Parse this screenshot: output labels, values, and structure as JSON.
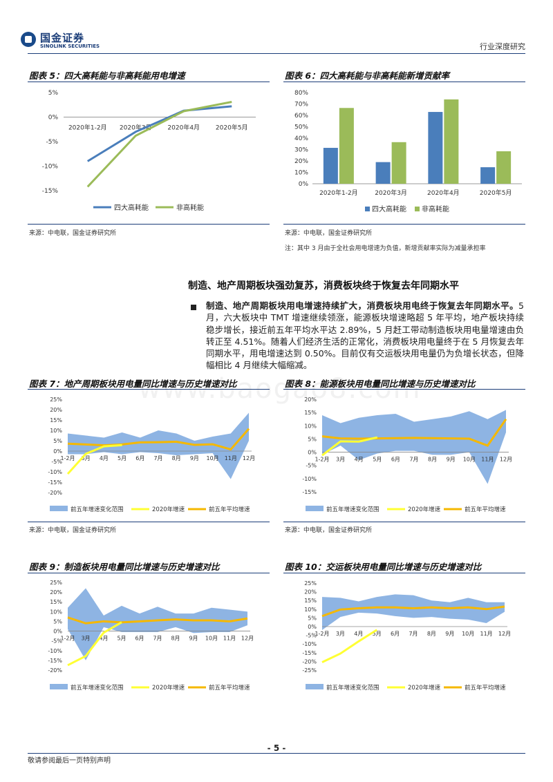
{
  "header": {
    "logo_cn": "国金证券",
    "logo_en": "SINOLINK SECURITIES",
    "section": "行业深度研究"
  },
  "figures": {
    "fig5": {
      "title": "图表 5：四大高耗能与非高耗能用电增速",
      "source": "来源：中电联，国金证券研究所"
    },
    "fig6": {
      "title": "图表 6：四大高耗能与非高耗能新增贡献率",
      "source": "来源：中电联，国金证券研究所",
      "note": "注：其中 3 月由于全社会用电增速为负值，新增贡献率实际为减量承担率"
    },
    "fig7": {
      "title": "图表 7：地产周期板块用电量同比增速与历史增速对比",
      "source": "来源：中电联，国金证券研究所"
    },
    "fig8": {
      "title": "图表 8：能源板块用电量同比增速与历史增速对比",
      "source": "来源：中电联，国金证券研究所"
    },
    "fig9": {
      "title": "图表 9：制造板块用电量同比增速与历史增速对比"
    },
    "fig10": {
      "title": "图表 10：交运板块用电量同比增速与历史增速对比"
    }
  },
  "section": {
    "title": "制造、地产周期板块强劲复苏，消费板块终于恢复去年同期水平",
    "bullet_bold": "制造、地产周期板块用电增速持续扩大，消费板块用电终于恢复去年同期水平。",
    "bullet_text": "5 月，六大板块中 TMT 增速继续领涨，能源板块增速略超 5 年平均，地产板块持续稳步增长，接近前五年平均水平达 2.89%，5 月赶工带动制造板块用电量增速由负转正至 4.51%。随着人们经济生活的正常化，消费板块用电量终于在 5 月恢复去年同期水平，用电增速达到 0.50%。目前仅有交运板块用电量仍为负增长状态，但降幅相比 4 月继续大幅缩减。"
  },
  "footer": {
    "page": "- 5 -",
    "note": "敬请参阅最后一页特别声明"
  },
  "watermark": "www.baogao8.com",
  "colors": {
    "blue": "#4a7ebb",
    "green": "#9bbb59",
    "band": "#8eb4e3",
    "yellow": "#ffff33",
    "gold": "#f5b800",
    "navy": "#1a3c78"
  },
  "chart_data": [
    {
      "id": "fig5",
      "type": "line",
      "categories": [
        "2020年1-2月",
        "2020年3月",
        "2020年4月",
        "2020年5月"
      ],
      "series": [
        {
          "name": "四大高耗能",
          "values": [
            -9.0,
            -3.0,
            1.3,
            2.2
          ],
          "color": "#4a7ebb"
        },
        {
          "name": "非高耗能",
          "values": [
            -14.2,
            -3.8,
            1.2,
            3.1
          ],
          "color": "#9bbb59"
        }
      ],
      "ylim": [
        -15,
        5
      ],
      "yticks": [
        5,
        0,
        -5,
        -10,
        -15
      ],
      "ytick_labels": [
        "5%",
        "0%",
        "-5%",
        "-10%",
        "-15%"
      ]
    },
    {
      "id": "fig6",
      "type": "bar",
      "categories": [
        "2020年1-2月",
        "2020年3月",
        "2020年4月",
        "2020年5月"
      ],
      "series": [
        {
          "name": "四大高耗能",
          "values": [
            31.5,
            19,
            63,
            14.5
          ],
          "color": "#4a7ebb"
        },
        {
          "name": "非高耗能",
          "values": [
            66.5,
            36.5,
            74,
            28.5
          ],
          "color": "#9bbb59"
        }
      ],
      "ylim": [
        0,
        80
      ],
      "yticks": [
        0,
        10,
        20,
        30,
        40,
        50,
        60,
        70,
        80
      ],
      "ytick_labels": [
        "0%",
        "10%",
        "20%",
        "30%",
        "40%",
        "50%",
        "60%",
        "70%",
        "80%"
      ]
    },
    {
      "id": "fig7",
      "type": "area",
      "categories": [
        "1-2月",
        "3月",
        "4月",
        "5月",
        "6月",
        "7月",
        "8月",
        "9月",
        "10月",
        "11月",
        "12月"
      ],
      "band_high": [
        8.5,
        7.5,
        6.5,
        9,
        6.5,
        10,
        8.5,
        5,
        7,
        8.5,
        18.5
      ],
      "band_low": [
        -1.5,
        -1.5,
        -0.5,
        -1.5,
        -0.5,
        -1,
        -2,
        -1.5,
        -1,
        -13.5,
        5
      ],
      "growth_2020": [
        -11,
        -1.3,
        2.3,
        2.89
      ],
      "avg_5yr": [
        3.6,
        3.2,
        2.8,
        3.2,
        4.2,
        4.3,
        4.5,
        3.0,
        3.3,
        0.8,
        10.8
      ],
      "ylim": [
        -20,
        25
      ],
      "yticks": [
        25,
        20,
        15,
        10,
        5,
        0,
        -5,
        -10,
        -15,
        -20
      ],
      "ytick_labels": [
        "25%",
        "20%",
        "15%",
        "10%",
        "5%",
        "0%",
        "-5%",
        "-10%",
        "-15%",
        "-20%"
      ],
      "legend": [
        "前五年增速变化范围",
        "2020年增速",
        "前五年平均增速"
      ]
    },
    {
      "id": "fig8",
      "type": "area",
      "categories": [
        "1-2月",
        "3月",
        "4月",
        "5月",
        "6月",
        "7月",
        "8月",
        "9月",
        "10月",
        "11月",
        "12月"
      ],
      "band_high": [
        14,
        11,
        13,
        14,
        14.5,
        11.5,
        12.5,
        13.5,
        15.5,
        12.5,
        16
      ],
      "band_low": [
        -1,
        2.5,
        -3,
        -0.5,
        0.5,
        0.5,
        -1,
        -1,
        0,
        -12,
        7.5
      ],
      "growth_2020": [
        -1.2,
        4.1,
        4.0,
        5.6
      ],
      "avg_5yr": [
        6,
        5.2,
        5.1,
        5.2,
        5.3,
        5.4,
        5.3,
        5.2,
        5.1,
        2.5,
        12.5
      ],
      "ylim": [
        -15,
        20
      ],
      "yticks": [
        20,
        15,
        10,
        5,
        0,
        -5,
        -10,
        -15
      ],
      "ytick_labels": [
        "20%",
        "15%",
        "10%",
        "5%",
        "0%",
        "-5%",
        "-10%",
        "-15%"
      ],
      "legend": [
        "前五年增速变化范围",
        "2020年增速",
        "前五年平均增速"
      ]
    },
    {
      "id": "fig9",
      "type": "area",
      "categories": [
        "1-2月",
        "3月",
        "4月",
        "5月",
        "6月",
        "7月",
        "8月",
        "9月",
        "10月",
        "11月",
        "12月"
      ],
      "band_high": [
        12,
        22,
        8,
        13,
        9,
        12.5,
        9,
        9,
        12,
        11,
        10
      ],
      "band_low": [
        1,
        -15,
        2,
        -0.5,
        -0.5,
        -0.5,
        2,
        -1,
        -0.5,
        -0.5,
        3
      ],
      "growth_2020": [
        -17.5,
        -12.8,
        -0.8,
        4.51
      ],
      "avg_5yr": [
        7,
        4,
        5,
        4.5,
        5,
        5.5,
        6,
        5.5,
        5.5,
        5,
        6.5
      ],
      "ylim": [
        -20,
        25
      ],
      "yticks": [
        25,
        20,
        15,
        10,
        5,
        0,
        -5,
        -10,
        -15,
        -20
      ],
      "ytick_labels": [
        "25%",
        "20%",
        "15%",
        "10%",
        "5%",
        "0%",
        "-5%",
        "-10%",
        "-15%",
        "-20%"
      ],
      "legend": [
        "前五年增速变化范围",
        "2020年增速",
        "前五年平均增速"
      ]
    },
    {
      "id": "fig10",
      "type": "area",
      "categories": [
        "1-2月",
        "3月",
        "4月",
        "5月",
        "6月",
        "7月",
        "8月",
        "9月",
        "10月",
        "11月",
        "12月"
      ],
      "band_high": [
        17,
        16.5,
        14.5,
        17,
        18.5,
        18,
        15,
        14,
        16.5,
        14,
        14
      ],
      "band_low": [
        -2,
        5.5,
        8,
        7.5,
        6,
        5,
        5.5,
        4.5,
        4,
        2,
        8.5
      ],
      "growth_2020": [
        -20.5,
        -15.5,
        -8.5,
        -1.9
      ],
      "avg_5yr": [
        6,
        9.8,
        10.5,
        11,
        11,
        10.5,
        11,
        10.5,
        11,
        10,
        11.5
      ],
      "ylim": [
        -25,
        25
      ],
      "yticks": [
        25,
        20,
        15,
        10,
        5,
        0,
        -5,
        -10,
        -15,
        -20,
        -25
      ],
      "ytick_labels": [
        "25%",
        "20%",
        "15%",
        "10%",
        "5%",
        "0%",
        "-5%",
        "-10%",
        "-15%",
        "-20%",
        "-25%"
      ],
      "legend": [
        "前五年增速变化范围",
        "2020年增速",
        "前五年平均增速"
      ]
    }
  ]
}
